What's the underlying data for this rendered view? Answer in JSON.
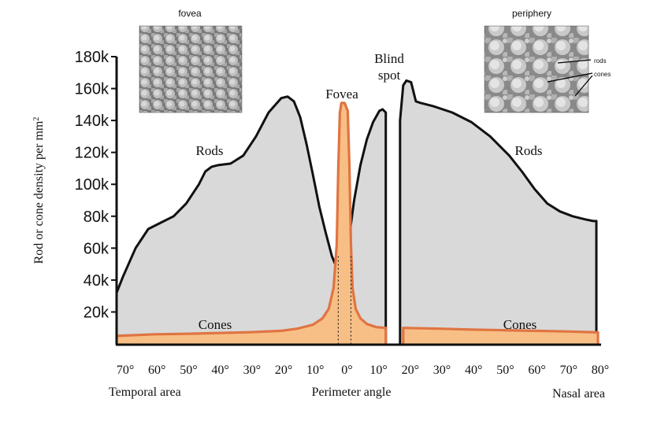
{
  "chart_data": {
    "type": "area",
    "title": "",
    "ylabel": "Rod or cone density per mm²",
    "xlabel": "Perimeter angle",
    "x_left_label": "Temporal area",
    "x_right_label": "Nasal area",
    "ylim": [
      0,
      180000
    ],
    "xlim": [
      -72,
      80
    ],
    "y_ticks": [
      {
        "value": 20000,
        "label": "20k"
      },
      {
        "value": 40000,
        "label": "40k"
      },
      {
        "value": 60000,
        "label": "60k"
      },
      {
        "value": 80000,
        "label": "80k"
      },
      {
        "value": 100000,
        "label": "100k"
      },
      {
        "value": 120000,
        "label": "120k"
      },
      {
        "value": 140000,
        "label": "140k"
      },
      {
        "value": 160000,
        "label": "160k"
      },
      {
        "value": 180000,
        "label": "180k"
      }
    ],
    "x_ticks": [
      {
        "value": -70,
        "label": "70°"
      },
      {
        "value": -60,
        "label": "60°"
      },
      {
        "value": -50,
        "label": "50°"
      },
      {
        "value": -40,
        "label": "40°"
      },
      {
        "value": -30,
        "label": "30°"
      },
      {
        "value": -20,
        "label": "20°"
      },
      {
        "value": -10,
        "label": "10°"
      },
      {
        "value": 0,
        "label": "0°"
      },
      {
        "value": 10,
        "label": "10°"
      },
      {
        "value": 20,
        "label": "20°"
      },
      {
        "value": 30,
        "label": "30°"
      },
      {
        "value": 40,
        "label": "40°"
      },
      {
        "value": 50,
        "label": "50°"
      },
      {
        "value": 60,
        "label": "60°"
      },
      {
        "value": 70,
        "label": "70°"
      },
      {
        "value": 80,
        "label": "80°"
      }
    ],
    "series": [
      {
        "name": "Rods (temporal)",
        "x": [
          -72,
          -70,
          -66,
          -62,
          -58,
          -54,
          -50,
          -46,
          -44,
          -42,
          -40,
          -36,
          -32,
          -28,
          -24,
          -20,
          -18,
          -16,
          -14,
          -12,
          -10,
          -8,
          -6,
          -4,
          -3
        ],
        "y": [
          32000,
          42000,
          60000,
          72000,
          76000,
          80000,
          88000,
          100000,
          108000,
          111000,
          112000,
          113000,
          118000,
          130000,
          145000,
          154000,
          155000,
          152000,
          142000,
          125000,
          106000,
          86000,
          70000,
          55000,
          50000
        ]
      },
      {
        "name": "Rods (nasal)",
        "x": [
          1,
          3,
          5,
          7,
          9,
          11,
          12,
          13
        ],
        "y": [
          60000,
          90000,
          112000,
          128000,
          139000,
          146000,
          147000,
          145000
        ]
      },
      {
        "name": "Rods (nasal, beyond blind spot)",
        "x": [
          17.5,
          18.5,
          19.5,
          21,
          22.5,
          24,
          28,
          34,
          40,
          46,
          52,
          56,
          60,
          64,
          68,
          72,
          76,
          78.5,
          79.5
        ],
        "y": [
          140000,
          162000,
          165000,
          164000,
          152000,
          151000,
          149000,
          145000,
          139000,
          130000,
          118000,
          108000,
          97000,
          88000,
          83000,
          80000,
          78000,
          77000,
          77000
        ]
      },
      {
        "name": "Cones",
        "x": [
          -72,
          -60,
          -50,
          -40,
          -30,
          -20,
          -15,
          -10,
          -7,
          -5,
          -3.5,
          -2.5,
          -2,
          -1.5,
          -1,
          0,
          1,
          1.5,
          2,
          2.5,
          3.5,
          5,
          7,
          10,
          13
        ],
        "y": [
          5000,
          6000,
          6300,
          6800,
          7300,
          8200,
          9500,
          12000,
          16000,
          22000,
          35000,
          62000,
          110000,
          145000,
          151000,
          151000,
          146000,
          112000,
          62000,
          35000,
          22000,
          16000,
          12500,
          10500,
          10000
        ]
      },
      {
        "name": "Cones (nasal)",
        "x": [
          18.5,
          30,
          40,
          50,
          60,
          70,
          80
        ],
        "y": [
          10000,
          9500,
          9000,
          8600,
          8200,
          7800,
          7200
        ]
      }
    ],
    "annotations": {
      "rods_left": "Rods",
      "rods_right": "Rods",
      "cones_left": "Cones",
      "cones_right": "Cones",
      "fovea": "Fovea",
      "blind_spot_line1": "Blind",
      "blind_spot_line2": "spot",
      "inset_fovea": "fovea",
      "inset_periphery": "periphery",
      "inset_rods": "rods",
      "inset_cones": "cones"
    },
    "colors": {
      "rod_fill": "#d9d9d9",
      "cone_fill": "#f7bf86",
      "cone_line": "#e07442",
      "rod_line": "#111111"
    }
  }
}
